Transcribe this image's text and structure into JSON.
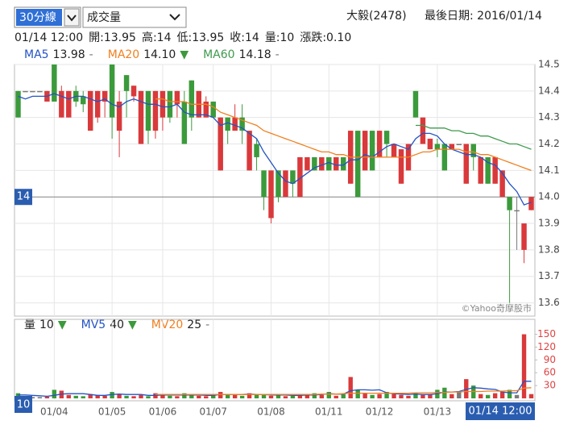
{
  "controls": {
    "interval": "30分線",
    "indicator": "成交量"
  },
  "header": {
    "stock": "大毅(2478)",
    "last_date": "最後日期: 2016/01/14"
  },
  "quote": [
    "01/14 12:00",
    "開:13.95",
    "高:14",
    "低:13.95",
    "收:14",
    "量:10",
    "漲跌:0.10"
  ],
  "chart_data": [
    {
      "type": "candlestick",
      "open": [
        14.4,
        14.4,
        14.4,
        14.4,
        14.36,
        14.5,
        14.3,
        14.3,
        14.4,
        14.38,
        14.25,
        14.3,
        14.36,
        14.5,
        14.25,
        14.46,
        14.38,
        14.2,
        14.4,
        14.25,
        14.3,
        14.4,
        14.35,
        14.36,
        14.44,
        14.3,
        14.3,
        14.36,
        14.1,
        14.3,
        14.25,
        14.3,
        14.1,
        14.2,
        14.1,
        13.92,
        14.1,
        14.0,
        14.1,
        14.0,
        14.1,
        14.15,
        14.1,
        14.15,
        14.1,
        14.15,
        14.05,
        14.25,
        14.1,
        14.25,
        14.15,
        14.25,
        14.15,
        14.05,
        14.1,
        14.4,
        14.2,
        14.18,
        14.2,
        14.2,
        14.18,
        14.2,
        14.05,
        14.2,
        14.05,
        14.15,
        14.05,
        14.0,
        14.0,
        13.95,
        13.8,
        13.95
      ],
      "high": [
        14.4,
        14.4,
        14.4,
        14.4,
        14.4,
        14.5,
        14.42,
        14.4,
        14.42,
        14.4,
        14.4,
        14.4,
        14.4,
        14.5,
        14.4,
        14.46,
        14.42,
        14.4,
        14.4,
        14.4,
        14.4,
        14.4,
        14.4,
        14.4,
        14.44,
        14.4,
        14.38,
        14.36,
        14.3,
        14.3,
        14.35,
        14.35,
        14.25,
        14.22,
        14.1,
        14.1,
        14.1,
        14.1,
        14.1,
        14.15,
        14.15,
        14.15,
        14.15,
        14.15,
        14.15,
        14.15,
        14.25,
        14.25,
        14.25,
        14.25,
        14.25,
        14.25,
        14.2,
        14.18,
        14.2,
        14.4,
        14.3,
        14.22,
        14.22,
        14.2,
        14.2,
        14.2,
        14.2,
        14.2,
        14.15,
        14.15,
        14.15,
        14.1,
        14.0,
        14.0,
        13.9,
        14.0
      ],
      "low": [
        14.3,
        14.4,
        14.4,
        14.4,
        14.36,
        14.36,
        14.3,
        14.3,
        14.34,
        14.32,
        14.25,
        14.28,
        14.3,
        14.22,
        14.15,
        14.3,
        14.36,
        14.2,
        14.2,
        14.22,
        14.25,
        14.28,
        14.3,
        14.2,
        14.25,
        14.3,
        14.3,
        14.3,
        14.1,
        14.2,
        14.25,
        14.2,
        14.1,
        14.1,
        13.95,
        13.9,
        13.98,
        14.0,
        14.0,
        14.0,
        14.1,
        14.1,
        14.1,
        14.1,
        14.1,
        14.1,
        14.05,
        14.0,
        14.1,
        14.1,
        14.15,
        14.15,
        14.15,
        14.05,
        14.1,
        14.3,
        14.2,
        14.18,
        14.15,
        14.1,
        14.18,
        14.2,
        14.05,
        14.1,
        14.05,
        14.05,
        14.05,
        14.0,
        13.6,
        13.8,
        13.75,
        13.95
      ],
      "close": [
        14.3,
        14.4,
        14.4,
        14.4,
        14.4,
        14.36,
        14.4,
        14.4,
        14.36,
        14.35,
        14.4,
        14.4,
        14.4,
        14.3,
        14.36,
        14.4,
        14.42,
        14.4,
        14.25,
        14.4,
        14.4,
        14.3,
        14.4,
        14.2,
        14.3,
        14.4,
        14.36,
        14.3,
        14.3,
        14.25,
        14.3,
        14.25,
        14.25,
        14.15,
        14.0,
        14.1,
        14.0,
        14.1,
        14.05,
        14.15,
        14.15,
        14.1,
        14.15,
        14.1,
        14.15,
        14.1,
        14.25,
        14.0,
        14.25,
        14.1,
        14.25,
        14.2,
        14.2,
        14.18,
        14.2,
        14.3,
        14.3,
        14.22,
        14.18,
        14.1,
        14.2,
        14.2,
        14.2,
        14.15,
        14.15,
        14.05,
        14.15,
        14.1,
        13.95,
        13.95,
        13.9,
        14.0
      ],
      "series": [
        {
          "name": "MA5",
          "color": "#2553c4",
          "legend_value": "13.98",
          "trend": "-",
          "values": [
            14.38,
            14.37,
            14.38,
            14.38,
            14.38,
            14.39,
            14.38,
            14.37,
            14.38,
            14.38,
            14.37,
            14.36,
            14.37,
            14.35,
            14.34,
            14.36,
            14.37,
            14.36,
            14.35,
            14.35,
            14.34,
            14.34,
            14.35,
            14.32,
            14.31,
            14.31,
            14.31,
            14.3,
            14.27,
            14.28,
            14.27,
            14.26,
            14.24,
            14.22,
            14.17,
            14.13,
            14.09,
            14.06,
            14.05,
            14.07,
            14.09,
            14.11,
            14.12,
            14.13,
            14.12,
            14.12,
            14.14,
            14.14,
            14.16,
            14.15,
            14.17,
            14.19,
            14.2,
            14.19,
            14.18,
            14.22,
            14.24,
            14.24,
            14.23,
            14.2,
            14.18,
            14.17,
            14.16,
            14.16,
            14.15,
            14.13,
            14.12,
            14.09,
            14.05,
            14.02,
            13.97,
            13.98
          ]
        },
        {
          "name": "MA20",
          "color": "#f07f1f",
          "legend_value": "14.10",
          "trend": "▼",
          "values": [
            null,
            null,
            null,
            null,
            null,
            null,
            null,
            null,
            null,
            null,
            null,
            null,
            null,
            null,
            null,
            null,
            null,
            null,
            null,
            14.37,
            14.37,
            14.36,
            14.36,
            14.36,
            14.35,
            14.35,
            14.35,
            14.34,
            14.32,
            14.31,
            14.3,
            14.29,
            14.28,
            14.27,
            14.25,
            14.24,
            14.23,
            14.22,
            14.21,
            14.2,
            14.19,
            14.18,
            14.17,
            14.17,
            14.16,
            14.16,
            14.15,
            14.15,
            14.15,
            14.15,
            14.15,
            14.15,
            14.15,
            14.15,
            14.15,
            14.16,
            14.17,
            14.17,
            14.18,
            14.18,
            14.18,
            14.18,
            14.17,
            14.17,
            14.16,
            14.16,
            14.15,
            14.14,
            14.13,
            14.12,
            14.11,
            14.1
          ]
        },
        {
          "name": "MA60",
          "color": "#3f9a4f",
          "legend_value": "14.18",
          "trend": "-",
          "values": [
            null,
            null,
            null,
            null,
            null,
            null,
            null,
            null,
            null,
            null,
            null,
            null,
            null,
            null,
            null,
            null,
            null,
            null,
            null,
            null,
            null,
            null,
            null,
            null,
            null,
            null,
            null,
            null,
            null,
            null,
            null,
            null,
            null,
            null,
            null,
            null,
            null,
            null,
            null,
            null,
            null,
            null,
            null,
            null,
            null,
            null,
            null,
            null,
            null,
            null,
            null,
            null,
            null,
            null,
            null,
            14.27,
            14.27,
            14.26,
            14.26,
            14.26,
            14.25,
            14.25,
            14.24,
            14.24,
            14.23,
            14.23,
            14.22,
            14.21,
            14.2,
            14.2,
            14.19,
            14.18
          ]
        }
      ],
      "up_color": "#d9393b",
      "down_color": "#3b9a3b",
      "flat_color": "#7a7a7a",
      "ylim": [
        13.55,
        14.5
      ],
      "yticks": [
        13.6,
        13.7,
        13.8,
        13.9,
        {
          "value": 14,
          "label": "14.0"
        },
        14.1,
        14.2,
        14.3,
        14.4,
        14.5
      ],
      "grid": true,
      "last_price": 14,
      "watermark": "©Yahoo奇摩股市"
    },
    {
      "type": "bar",
      "categories": [
        null,
        null,
        null,
        null,
        null,
        "01/04",
        null,
        null,
        null,
        null,
        null,
        null,
        null,
        "01/05",
        null,
        null,
        null,
        null,
        null,
        null,
        "01/06",
        null,
        null,
        null,
        null,
        null,
        null,
        "01/07",
        null,
        null,
        null,
        null,
        null,
        null,
        null,
        "01/08",
        null,
        null,
        null,
        null,
        null,
        null,
        null,
        "01/11",
        null,
        null,
        null,
        null,
        null,
        null,
        "01/12",
        null,
        null,
        null,
        null,
        null,
        null,
        null,
        "01/13",
        null,
        null,
        null,
        null,
        null,
        null,
        null,
        null,
        null,
        null,
        null,
        null,
        "01/14 12:00"
      ],
      "name": "量",
      "legend_value": "10",
      "trend": "▼",
      "values": [
        12,
        5,
        3,
        3,
        4,
        20,
        18,
        8,
        6,
        5,
        10,
        8,
        6,
        15,
        10,
        6,
        5,
        8,
        5,
        12,
        10,
        6,
        5,
        12,
        8,
        6,
        5,
        10,
        15,
        10,
        8,
        6,
        12,
        10,
        8,
        6,
        10,
        5,
        6,
        8,
        10,
        12,
        8,
        15,
        6,
        10,
        50,
        20,
        12,
        8,
        10,
        15,
        10,
        8,
        6,
        12,
        8,
        10,
        20,
        25,
        10,
        15,
        45,
        30,
        10,
        8,
        12,
        15,
        20,
        8,
        150,
        10
      ],
      "series": [
        {
          "name": "MV5",
          "color": "#2553c4",
          "legend_value": "40",
          "trend": "▼",
          "values": [
            8,
            8,
            7,
            6,
            5,
            7,
            10,
            11,
            11,
            11,
            9,
            7,
            7,
            9,
            10,
            9,
            9,
            9,
            7,
            7,
            8,
            8,
            8,
            8,
            8,
            8,
            7,
            7,
            9,
            9,
            9,
            9,
            10,
            9,
            9,
            8,
            8,
            8,
            7,
            7,
            8,
            8,
            9,
            11,
            10,
            10,
            18,
            20,
            20,
            19,
            20,
            13,
            11,
            10,
            9,
            10,
            9,
            9,
            11,
            15,
            15,
            16,
            21,
            25,
            24,
            22,
            21,
            15,
            13,
            13,
            40,
            40
          ]
        },
        {
          "name": "MV20",
          "color": "#f07f1f",
          "legend_value": "25",
          "trend": "-",
          "values": [
            null,
            null,
            null,
            null,
            null,
            null,
            null,
            null,
            null,
            null,
            null,
            null,
            null,
            null,
            null,
            null,
            null,
            null,
            null,
            9,
            9,
            9,
            9,
            9,
            9,
            9,
            9,
            9,
            9,
            9,
            9,
            9,
            9,
            9,
            9,
            9,
            9,
            9,
            9,
            9,
            9,
            9,
            10,
            10,
            10,
            11,
            12,
            12,
            12,
            12,
            12,
            12,
            12,
            12,
            12,
            13,
            13,
            13,
            14,
            14,
            15,
            15,
            16,
            16,
            16,
            17,
            17,
            17,
            18,
            18,
            24,
            25
          ]
        }
      ],
      "ylim": [
        0,
        185
      ],
      "yticks": [
        30,
        60,
        90,
        120,
        150
      ],
      "grid": false,
      "last_volume": 10
    }
  ]
}
